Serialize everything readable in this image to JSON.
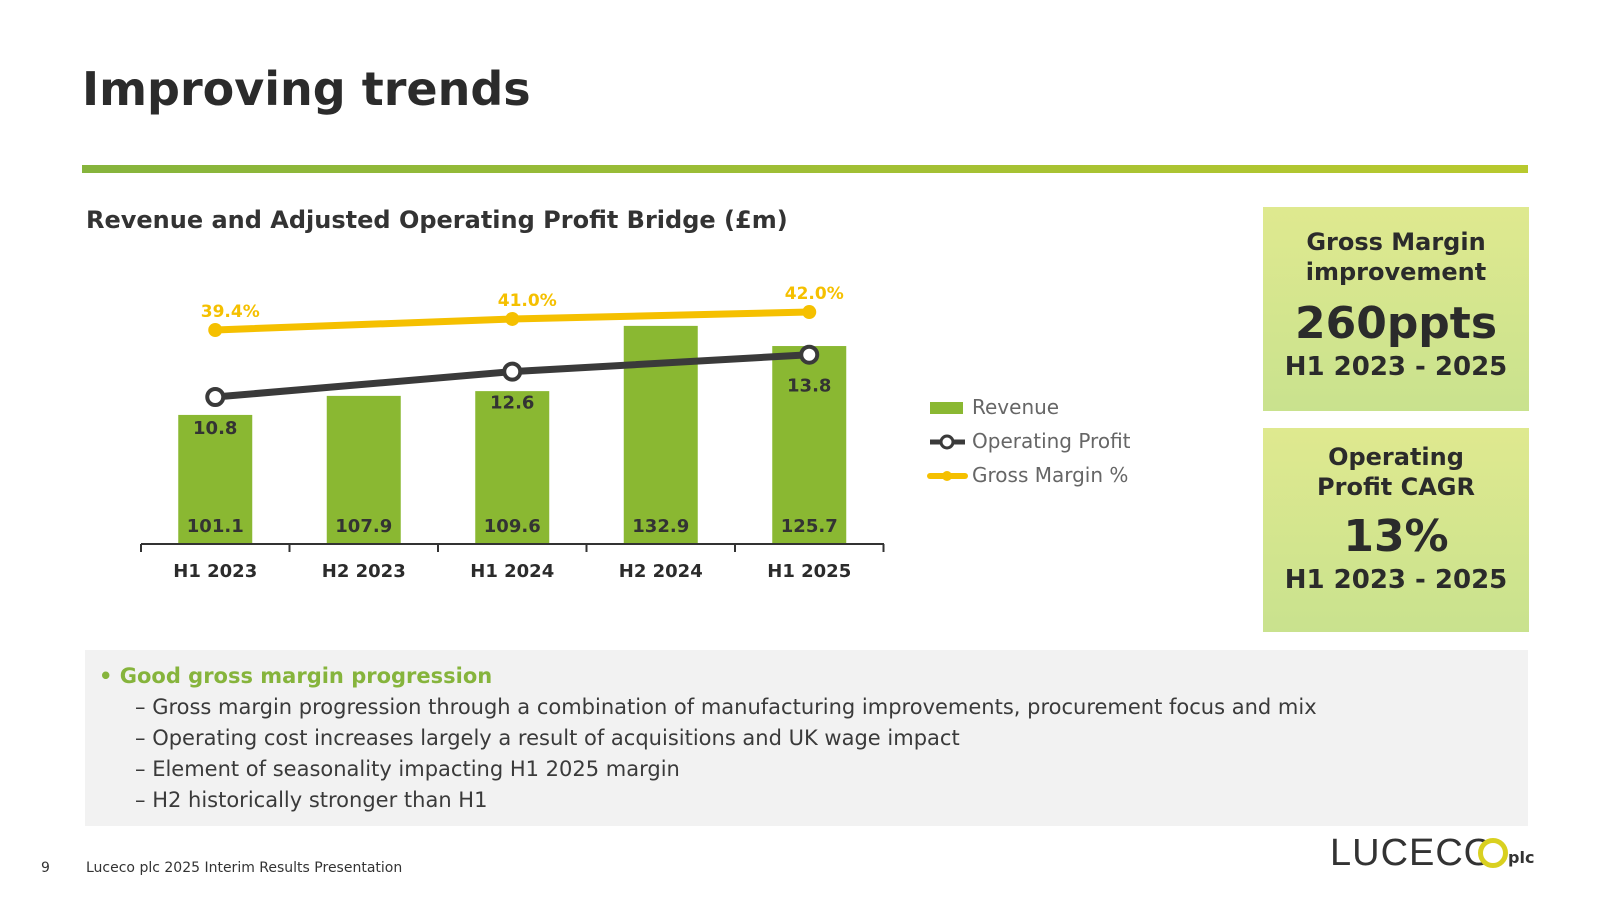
{
  "slide": {
    "title": "Improving trends",
    "page_number": "9",
    "footer": "Luceco plc 2025 Interim Results Presentation",
    "logo_text": "LUCECO",
    "logo_suffix": "plc"
  },
  "colors": {
    "revenue": "#8ab832",
    "operating_profit": "#3a3a3a",
    "gross_margin": "#f5c000",
    "accent": "#86b43c"
  },
  "chart_data": {
    "type": "bar",
    "title": "Revenue and Adjusted Operating Profit Bridge (£m)",
    "categories": [
      "H1 2023",
      "H2 2023",
      "H1 2024",
      "H2 2024",
      "H1 2025"
    ],
    "series": [
      {
        "name": "Revenue",
        "type": "bar",
        "values": [
          101.1,
          107.9,
          109.6,
          132.9,
          125.7
        ],
        "labels": [
          "101.1",
          "107.9",
          "109.6",
          "132.9",
          "125.7"
        ]
      },
      {
        "name": "Operating Profit",
        "type": "line",
        "values": [
          10.8,
          null,
          12.6,
          null,
          13.8
        ],
        "labels": [
          "10.8",
          "",
          "12.6",
          "",
          "13.8"
        ]
      },
      {
        "name": "Gross Margin %",
        "type": "line",
        "values": [
          39.4,
          null,
          41.0,
          null,
          42.0
        ],
        "labels": [
          "39.4%",
          "",
          "41.0%",
          "",
          "42.0%"
        ]
      }
    ],
    "legend_position": "right",
    "grid": false
  },
  "kpis": [
    {
      "label_line1": "Gross Margin",
      "label_line2": "improvement",
      "value": "260ppts",
      "period": "H1 2023 - 2025"
    },
    {
      "label_line1": "Operating",
      "label_line2": "Profit CAGR",
      "value": "13%",
      "period": "H1 2023 - 2025"
    }
  ],
  "notes": {
    "heading": "• Good gross margin progression",
    "bullets": [
      "Gross margin progression through a combination of manufacturing improvements, procurement focus and mix",
      "Operating cost increases largely a result of acquisitions and UK wage impact",
      "Element of seasonality impacting H1 2025 margin",
      "H2 historically stronger than H1"
    ]
  }
}
